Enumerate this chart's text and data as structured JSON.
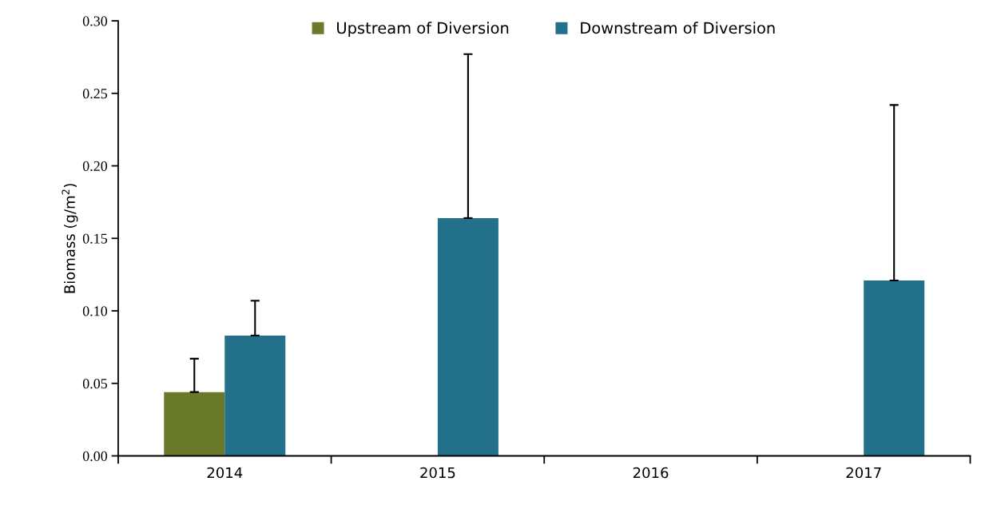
{
  "chart_data": {
    "type": "bar",
    "ylabel": "Biomass (g/m$^{2}$)",
    "categories": [
      "2014",
      "2015",
      "2016",
      "2017"
    ],
    "series": [
      {
        "name": "Upstream of Diversion",
        "color": "#6b7a2a",
        "values": [
          0.044,
          null,
          null,
          null
        ],
        "errors": [
          0.023,
          null,
          null,
          null
        ]
      },
      {
        "name": "Downstream of Diversion",
        "color": "#22708a",
        "values": [
          0.083,
          0.164,
          null,
          0.121
        ],
        "errors": [
          0.024,
          0.113,
          null,
          0.121
        ]
      }
    ],
    "ylim": [
      0,
      0.3
    ],
    "yticks": [
      {
        "value": 0,
        "label": "0.00"
      },
      {
        "value": 0.05,
        "label": "0.05"
      },
      {
        "value": 0.1,
        "label": "0.10"
      },
      {
        "value": 0.15,
        "label": "0.15"
      },
      {
        "value": 0.2,
        "label": "0.20"
      },
      {
        "value": 0.25,
        "label": "0.25"
      },
      {
        "value": 0.3,
        "label": "0.30"
      }
    ],
    "grid": false,
    "legend": "top"
  }
}
